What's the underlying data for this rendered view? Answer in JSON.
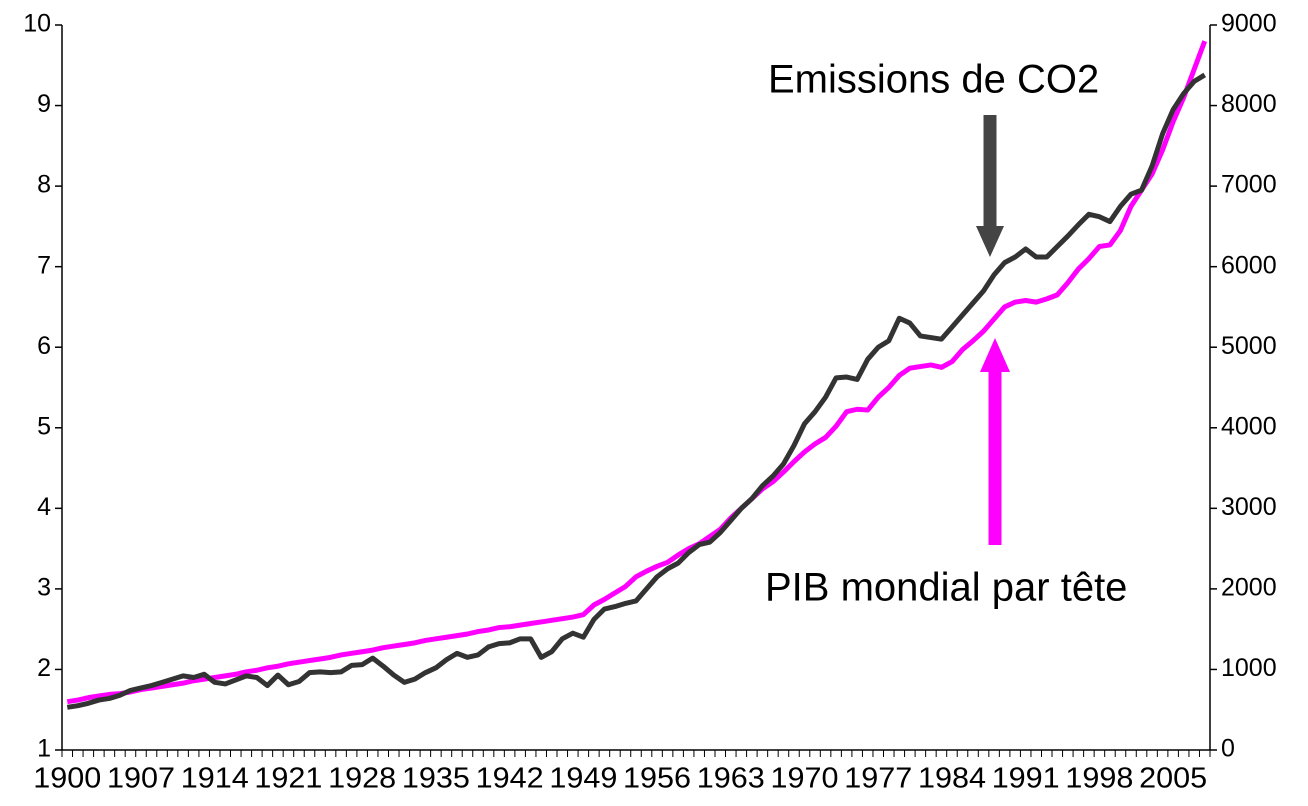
{
  "chart_data": {
    "type": "line",
    "categories": [
      "1900",
      null,
      null,
      null,
      null,
      null,
      null,
      "1907",
      null,
      null,
      null,
      null,
      null,
      null,
      "1914",
      null,
      null,
      null,
      null,
      null,
      null,
      "1921",
      null,
      null,
      null,
      null,
      null,
      null,
      "1928",
      null,
      null,
      null,
      null,
      null,
      null,
      "1935",
      null,
      null,
      null,
      null,
      null,
      null,
      "1942",
      null,
      null,
      null,
      null,
      null,
      null,
      "1949",
      null,
      null,
      null,
      null,
      null,
      null,
      "1956",
      null,
      null,
      null,
      null,
      null,
      null,
      "1963",
      null,
      null,
      null,
      null,
      null,
      null,
      "1970",
      null,
      null,
      null,
      null,
      null,
      null,
      "1977",
      null,
      null,
      null,
      null,
      null,
      null,
      "1984",
      null,
      null,
      null,
      null,
      null,
      null,
      "1991",
      null,
      null,
      null,
      null,
      null,
      null,
      "1998",
      null,
      null,
      null,
      null,
      null,
      null,
      "2005",
      null,
      null,
      null
    ],
    "series": [
      {
        "name": "Emissions de CO2",
        "color": "#333333",
        "axis": "y",
        "values": [
          1.53,
          1.55,
          1.58,
          1.62,
          1.64,
          1.68,
          1.74,
          1.77,
          1.8,
          1.84,
          1.88,
          1.92,
          1.9,
          1.94,
          1.84,
          1.82,
          1.87,
          1.92,
          1.9,
          1.8,
          1.93,
          1.81,
          1.85,
          1.96,
          1.97,
          1.96,
          1.97,
          2.05,
          2.06,
          2.14,
          2.04,
          1.93,
          1.84,
          1.88,
          1.96,
          2.02,
          2.12,
          2.2,
          2.15,
          2.18,
          2.28,
          2.32,
          2.33,
          2.38,
          2.38,
          2.15,
          2.22,
          2.38,
          2.45,
          2.4,
          2.62,
          2.75,
          2.78,
          2.82,
          2.85,
          3.0,
          3.15,
          3.25,
          3.32,
          3.45,
          3.55,
          3.58,
          3.7,
          3.85,
          4.0,
          4.12,
          4.28,
          4.4,
          4.55,
          4.78,
          5.05,
          5.2,
          5.38,
          5.62,
          5.63,
          5.6,
          5.85,
          6.0,
          6.08,
          6.36,
          6.3,
          6.14,
          6.12,
          6.1,
          6.25,
          6.4,
          6.55,
          6.7,
          6.9,
          7.05,
          7.12,
          7.22,
          7.12,
          7.12,
          7.25,
          7.38,
          7.52,
          7.65,
          7.62,
          7.56,
          7.75,
          7.9,
          7.95,
          8.25,
          8.65,
          8.95,
          9.15,
          9.3,
          9.38
        ]
      },
      {
        "name": "PIB mondial par tête",
        "color": "#ff00ff",
        "axis": "y2",
        "values": [
          600,
          620,
          650,
          670,
          690,
          700,
          720,
          750,
          770,
          790,
          810,
          830,
          860,
          880,
          900,
          920,
          940,
          970,
          990,
          1020,
          1040,
          1070,
          1090,
          1110,
          1130,
          1150,
          1180,
          1200,
          1220,
          1240,
          1270,
          1290,
          1310,
          1330,
          1360,
          1380,
          1400,
          1420,
          1440,
          1470,
          1490,
          1520,
          1530,
          1550,
          1570,
          1590,
          1610,
          1630,
          1650,
          1680,
          1800,
          1870,
          1950,
          2030,
          2150,
          2220,
          2280,
          2330,
          2420,
          2500,
          2560,
          2650,
          2740,
          2880,
          3000,
          3120,
          3240,
          3330,
          3450,
          3580,
          3700,
          3800,
          3880,
          4020,
          4200,
          4230,
          4220,
          4380,
          4500,
          4650,
          4740,
          4760,
          4780,
          4750,
          4820,
          4970,
          5080,
          5200,
          5350,
          5500,
          5560,
          5580,
          5560,
          5600,
          5650,
          5800,
          5970,
          6100,
          6250,
          6270,
          6450,
          6750,
          6950,
          7150,
          7450,
          7800,
          8100,
          8450,
          8800
        ]
      }
    ],
    "ylim": [
      1,
      10
    ],
    "yticks": [
      1,
      2,
      3,
      4,
      5,
      6,
      7,
      8,
      9,
      10
    ],
    "y2lim": [
      0,
      9000
    ],
    "y2ticks": [
      0,
      1000,
      2000,
      3000,
      4000,
      5000,
      6000,
      7000,
      8000,
      9000
    ]
  }
}
